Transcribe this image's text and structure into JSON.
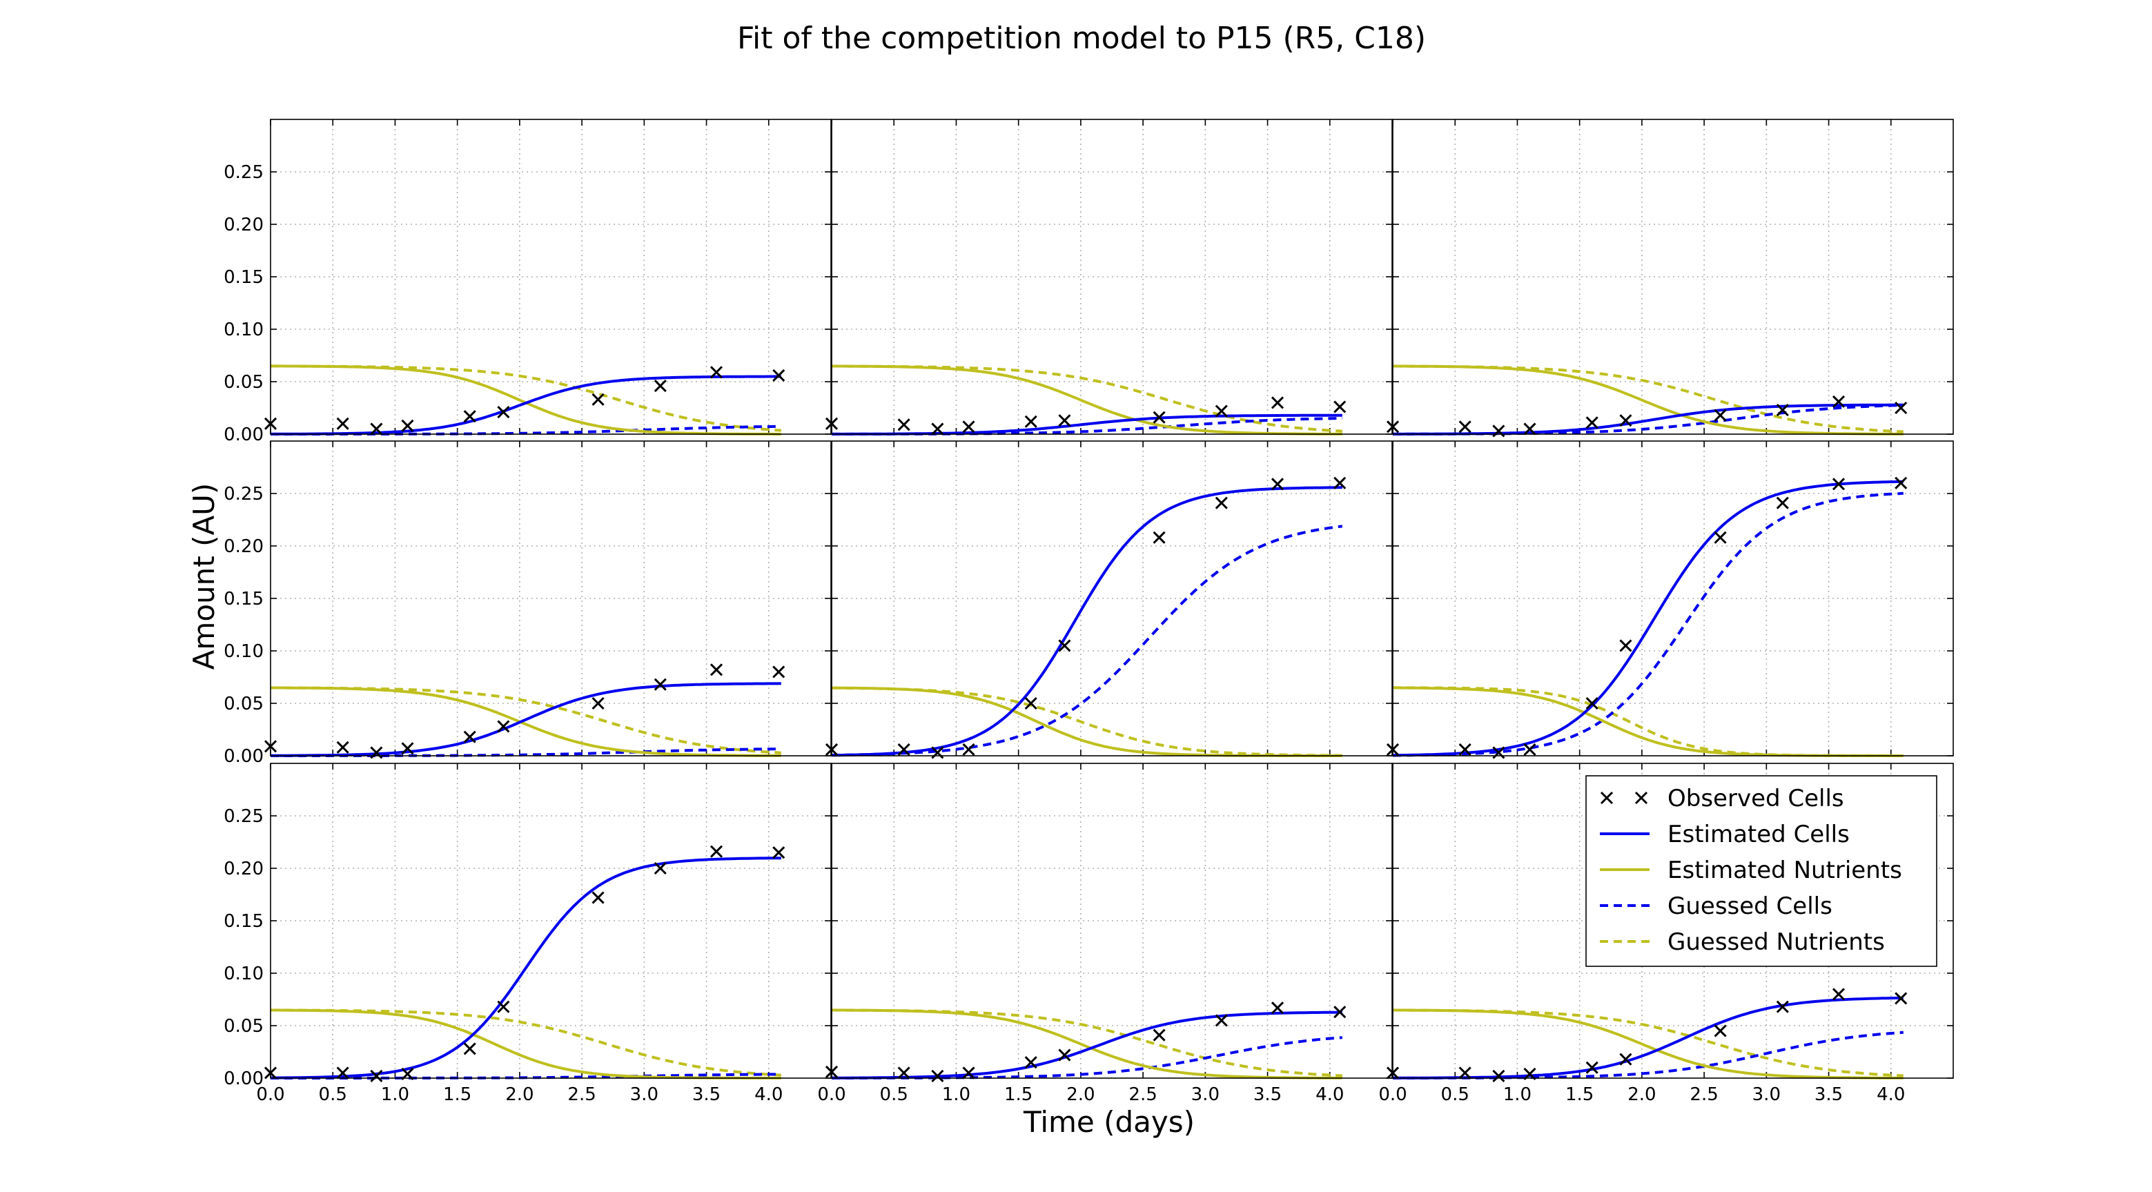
{
  "chart_data": {
    "type": "line",
    "title": "Fit of the competition model to P15 (R5, C18)",
    "xlabel": "Time (days)",
    "ylabel": "Amount (AU)",
    "xlim": [
      0.0,
      4.5
    ],
    "ylim": [
      0.0,
      0.3
    ],
    "x_ticks": [
      "0.0",
      "0.5",
      "1.0",
      "1.5",
      "2.0",
      "2.5",
      "3.0",
      "3.5",
      "4.0"
    ],
    "y_ticks": [
      "0.00",
      "0.05",
      "0.10",
      "0.15",
      "0.20",
      "0.25"
    ],
    "grid": true,
    "layout": "3x3 grid of panels sharing axes",
    "colors": {
      "cells": "#0000ee",
      "nutrients": "#bfbf1f",
      "observed": "#000000"
    },
    "legend": {
      "placement": "top-right of bottom-right panel",
      "entries": [
        {
          "label": "Observed Cells",
          "style": "marker",
          "color": "#000000"
        },
        {
          "label": "Estimated Cells",
          "style": "solid",
          "color": "#0000ee"
        },
        {
          "label": "Estimated Nutrients",
          "style": "solid",
          "color": "#bfbf1f"
        },
        {
          "label": "Guessed Cells",
          "style": "dashed",
          "color": "#0000ee"
        },
        {
          "label": "Guessed Nutrients",
          "style": "dashed",
          "color": "#bfbf1f"
        }
      ]
    },
    "observed_x": [
      0.0,
      0.58,
      0.85,
      1.1,
      1.6,
      1.87,
      2.63,
      3.13,
      3.58,
      4.08
    ],
    "time_range": [
      0.0,
      4.1
    ],
    "panels": [
      {
        "observed_y": [
          0.01,
          0.01,
          0.005,
          0.008,
          0.017,
          0.021,
          0.033,
          0.046,
          0.059,
          0.056
        ],
        "estimated_cells": {
          "start": 0.0,
          "end": 0.055,
          "midpoint": 2.0,
          "rate": 3.2
        },
        "estimated_nutrients": {
          "start": 0.065,
          "end": 0.0,
          "midpoint": 2.0,
          "rate": 3.2
        },
        "guessed_cells": {
          "start": 0.0,
          "end": 0.008,
          "midpoint": 3.0,
          "rate": 2.2
        },
        "guessed_nutrients": {
          "start": 0.065,
          "end": 0.0,
          "midpoint": 2.8,
          "rate": 2.2
        }
      },
      {
        "observed_y": [
          0.01,
          0.009,
          0.005,
          0.007,
          0.012,
          0.013,
          0.016,
          0.022,
          0.03,
          0.026
        ],
        "estimated_cells": {
          "start": 0.0,
          "end": 0.018,
          "midpoint": 2.0,
          "rate": 2.8
        },
        "estimated_nutrients": {
          "start": 0.065,
          "end": 0.0,
          "midpoint": 2.0,
          "rate": 3.0
        },
        "guessed_cells": {
          "start": 0.0,
          "end": 0.016,
          "midpoint": 2.8,
          "rate": 2.2
        },
        "guessed_nutrients": {
          "start": 0.065,
          "end": 0.0,
          "midpoint": 2.7,
          "rate": 2.2
        }
      },
      {
        "observed_y": [
          0.007,
          0.007,
          0.003,
          0.005,
          0.011,
          0.013,
          0.018,
          0.023,
          0.031,
          0.025
        ],
        "estimated_cells": {
          "start": 0.0,
          "end": 0.028,
          "midpoint": 2.1,
          "rate": 2.8
        },
        "estimated_nutrients": {
          "start": 0.065,
          "end": 0.0,
          "midpoint": 2.0,
          "rate": 3.0
        },
        "guessed_cells": {
          "start": 0.0,
          "end": 0.029,
          "midpoint": 2.75,
          "rate": 2.2
        },
        "guessed_nutrients": {
          "start": 0.065,
          "end": 0.0,
          "midpoint": 2.6,
          "rate": 2.2
        }
      },
      {
        "observed_y": [
          0.009,
          0.008,
          0.003,
          0.007,
          0.018,
          0.028,
          0.05,
          0.068,
          0.082,
          0.08
        ],
        "estimated_cells": {
          "start": 0.0,
          "end": 0.069,
          "midpoint": 2.05,
          "rate": 3.0
        },
        "estimated_nutrients": {
          "start": 0.065,
          "end": 0.0,
          "midpoint": 2.0,
          "rate": 3.0
        },
        "guessed_cells": {
          "start": 0.0,
          "end": 0.007,
          "midpoint": 2.9,
          "rate": 2.2
        },
        "guessed_nutrients": {
          "start": 0.065,
          "end": 0.0,
          "midpoint": 2.7,
          "rate": 2.2
        }
      },
      {
        "observed_y": [
          0.006,
          0.006,
          0.003,
          0.006,
          0.05,
          0.105,
          0.208,
          0.241,
          0.259,
          0.26
        ],
        "estimated_cells": {
          "start": 0.0,
          "end": 0.256,
          "midpoint": 1.95,
          "rate": 3.2
        },
        "estimated_nutrients": {
          "start": 0.065,
          "end": 0.0,
          "midpoint": 1.65,
          "rate": 3.4
        },
        "guessed_cells": {
          "start": 0.0,
          "end": 0.225,
          "midpoint": 2.55,
          "rate": 2.3
        },
        "guessed_nutrients": {
          "start": 0.065,
          "end": 0.0,
          "midpoint": 2.0,
          "rate": 2.6
        }
      },
      {
        "observed_y": [
          0.006,
          0.006,
          0.003,
          0.006,
          0.05,
          0.105,
          0.208,
          0.241,
          0.259,
          0.26
        ],
        "estimated_cells": {
          "start": 0.0,
          "end": 0.262,
          "midpoint": 2.1,
          "rate": 3.0
        },
        "estimated_nutrients": {
          "start": 0.065,
          "end": 0.0,
          "midpoint": 1.7,
          "rate": 3.4
        },
        "guessed_cells": {
          "start": 0.0,
          "end": 0.252,
          "midpoint": 2.35,
          "rate": 2.8
        },
        "guessed_nutrients": {
          "start": 0.065,
          "end": 0.0,
          "midpoint": 1.9,
          "rate": 3.6
        }
      },
      {
        "observed_y": [
          0.005,
          0.005,
          0.002,
          0.004,
          0.028,
          0.068,
          0.172,
          0.2,
          0.216,
          0.215
        ],
        "estimated_cells": {
          "start": 0.0,
          "end": 0.21,
          "midpoint": 2.05,
          "rate": 3.3
        },
        "estimated_nutrients": {
          "start": 0.065,
          "end": 0.0,
          "midpoint": 1.8,
          "rate": 3.3
        },
        "guessed_cells": {
          "start": 0.0,
          "end": 0.004,
          "midpoint": 3.0,
          "rate": 2.2
        },
        "guessed_nutrients": {
          "start": 0.065,
          "end": 0.0,
          "midpoint": 2.7,
          "rate": 2.2
        }
      },
      {
        "observed_y": [
          0.006,
          0.005,
          0.002,
          0.005,
          0.015,
          0.022,
          0.041,
          0.055,
          0.067,
          0.063
        ],
        "estimated_cells": {
          "start": 0.0,
          "end": 0.063,
          "midpoint": 2.15,
          "rate": 2.8
        },
        "estimated_nutrients": {
          "start": 0.065,
          "end": 0.0,
          "midpoint": 2.0,
          "rate": 3.0
        },
        "guessed_cells": {
          "start": 0.0,
          "end": 0.043,
          "midpoint": 3.1,
          "rate": 2.2
        },
        "guessed_nutrients": {
          "start": 0.065,
          "end": 0.0,
          "midpoint": 2.6,
          "rate": 2.2
        }
      },
      {
        "observed_y": [
          0.005,
          0.005,
          0.002,
          0.004,
          0.01,
          0.018,
          0.045,
          0.068,
          0.08,
          0.076
        ],
        "estimated_cells": {
          "start": 0.0,
          "end": 0.077,
          "midpoint": 2.35,
          "rate": 2.8
        },
        "estimated_nutrients": {
          "start": 0.065,
          "end": 0.0,
          "midpoint": 2.0,
          "rate": 3.0
        },
        "guessed_cells": {
          "start": 0.0,
          "end": 0.047,
          "midpoint": 3.0,
          "rate": 2.3
        },
        "guessed_nutrients": {
          "start": 0.065,
          "end": 0.0,
          "midpoint": 2.6,
          "rate": 2.2
        }
      }
    ]
  }
}
